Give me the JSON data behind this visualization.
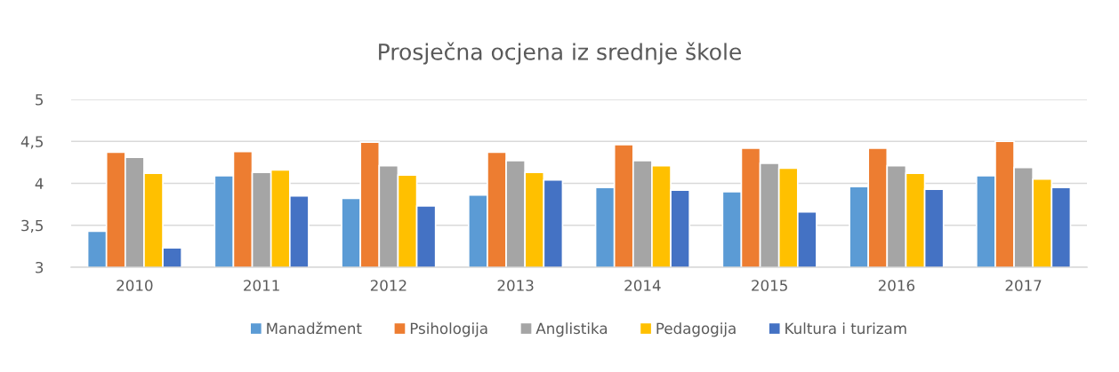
{
  "chart_data": {
    "type": "bar",
    "title": "Prosječna ocjena iz srednje škole",
    "categories": [
      "2010",
      "2011",
      "2012",
      "2013",
      "2014",
      "2015",
      "2016",
      "2017"
    ],
    "series": [
      {
        "name": "Manadžment",
        "color": "#5b9bd5",
        "values": [
          3.43,
          4.09,
          3.82,
          3.86,
          3.95,
          3.9,
          3.96,
          4.09
        ]
      },
      {
        "name": "Psihologija",
        "color": "#ed7d31",
        "values": [
          4.37,
          4.38,
          4.49,
          4.37,
          4.46,
          4.42,
          4.42,
          4.5
        ]
      },
      {
        "name": "Anglistika",
        "color": "#a5a5a5",
        "values": [
          4.31,
          4.13,
          4.21,
          4.27,
          4.27,
          4.24,
          4.21,
          4.19
        ]
      },
      {
        "name": "Pedagogija",
        "color": "#ffc000",
        "values": [
          4.12,
          4.16,
          4.1,
          4.13,
          4.21,
          4.18,
          4.12,
          4.05
        ]
      },
      {
        "name": "Kultura i turizam",
        "color": "#4472c4",
        "values": [
          3.23,
          3.85,
          3.73,
          4.04,
          3.92,
          3.66,
          3.93,
          3.95
        ]
      }
    ],
    "ylim": [
      3,
      5
    ],
    "yticks": [
      3,
      {
        "value": 3.5,
        "label": "3,5"
      },
      4,
      {
        "value": 4.5,
        "label": "4,5"
      },
      5
    ],
    "grid": "y",
    "legend": "bottom"
  }
}
